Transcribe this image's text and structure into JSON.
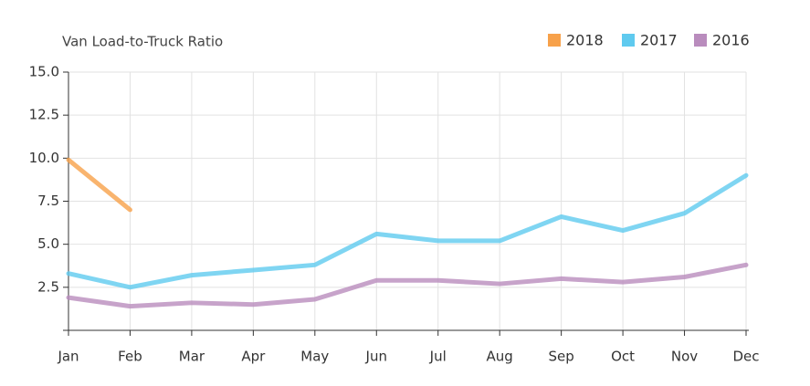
{
  "chart_data": {
    "type": "line",
    "title": "Van Load-to-Truck Ratio",
    "categories": [
      "Jan",
      "Feb",
      "Mar",
      "Apr",
      "May",
      "Jun",
      "Jul",
      "Aug",
      "Sep",
      "Oct",
      "Nov",
      "Dec"
    ],
    "series": [
      {
        "name": "2018",
        "color": "#f7a14a",
        "values": [
          9.9,
          7.0,
          null,
          null,
          null,
          null,
          null,
          null,
          null,
          null,
          null,
          null
        ]
      },
      {
        "name": "2017",
        "color": "#5fcaef",
        "values": [
          3.3,
          2.5,
          3.2,
          3.5,
          3.8,
          5.6,
          5.2,
          5.2,
          6.6,
          5.8,
          6.8,
          9.0
        ]
      },
      {
        "name": "2016",
        "color": "#b98cbd",
        "values": [
          1.9,
          1.4,
          1.6,
          1.5,
          1.8,
          2.9,
          2.9,
          2.7,
          3.0,
          2.8,
          3.1,
          3.8
        ]
      }
    ],
    "ylim": [
      0,
      15
    ],
    "yticks": [
      2.5,
      {
        "value": 5,
        "label": "5.0"
      },
      7.5,
      {
        "value": 10,
        "label": "10.0"
      },
      12.5,
      {
        "value": 15,
        "label": "15.0"
      }
    ],
    "grid": true,
    "legend": "top-right"
  }
}
